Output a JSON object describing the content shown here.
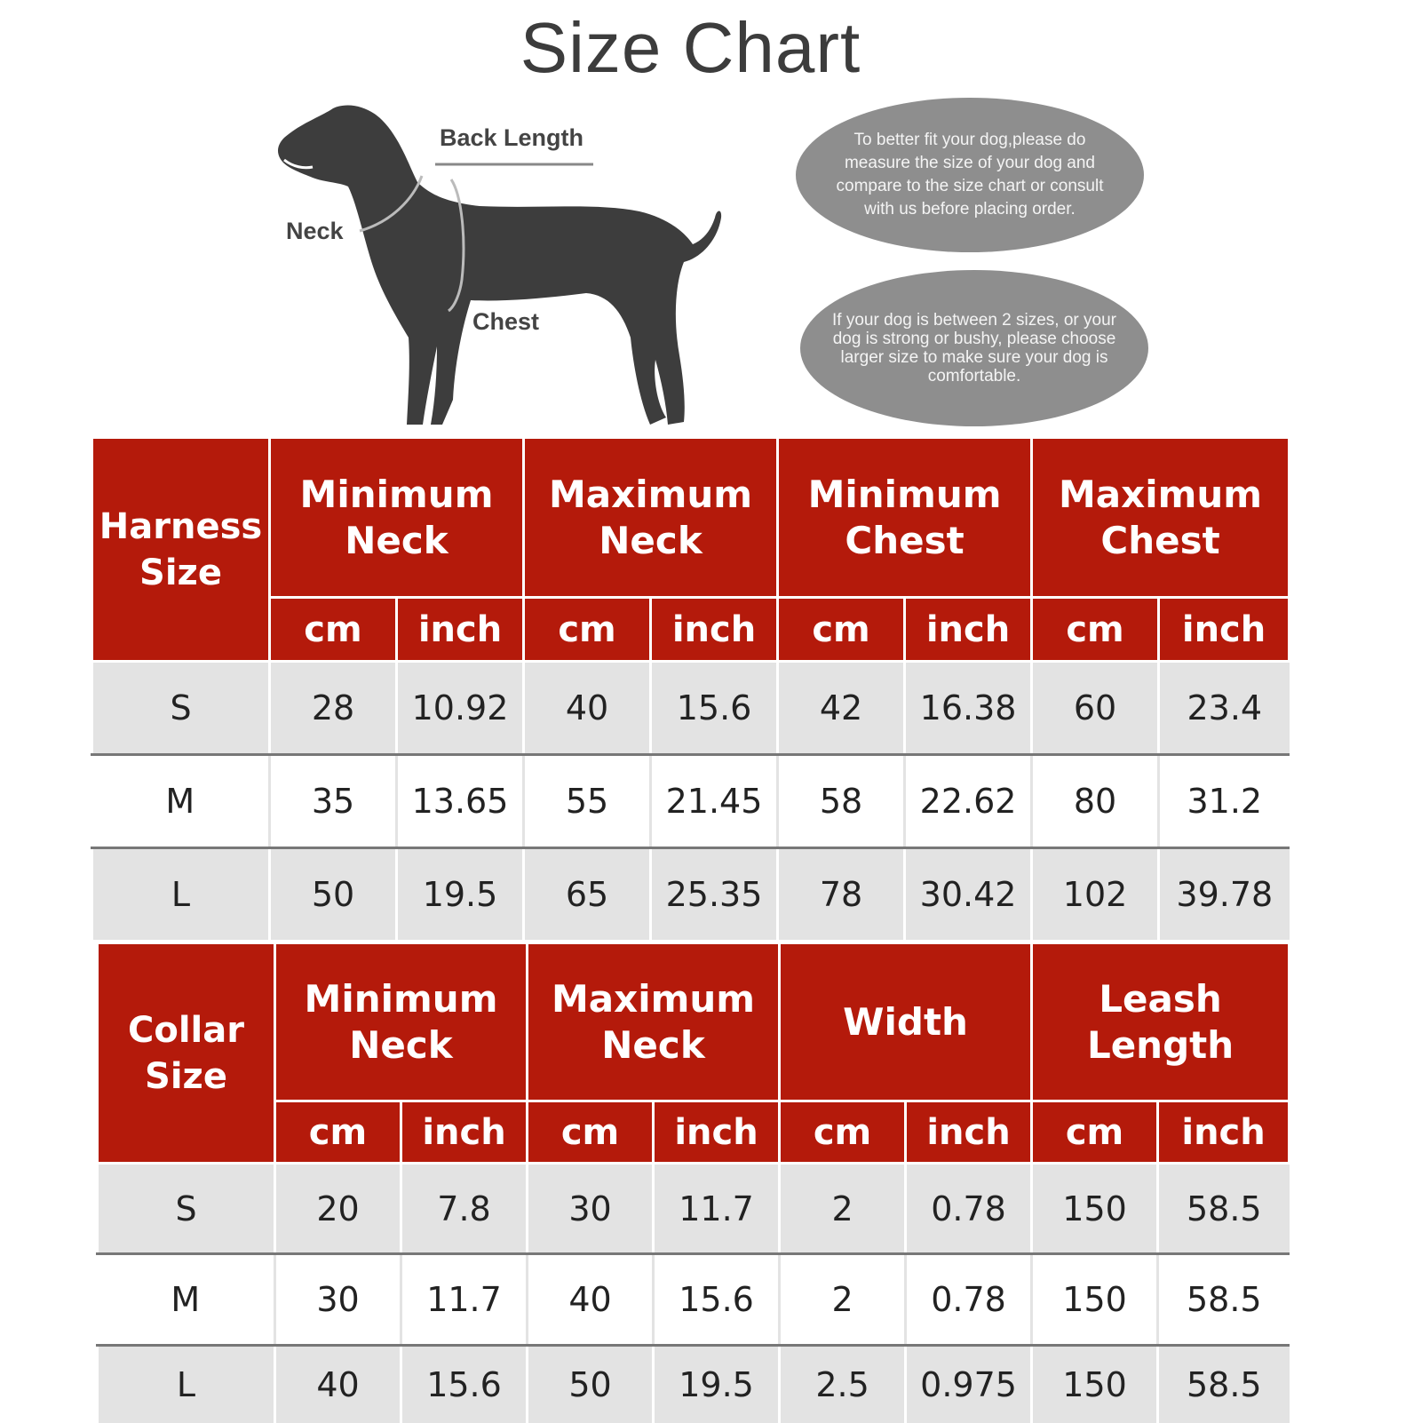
{
  "title": "Size Chart",
  "diagram": {
    "labels": {
      "back_length": "Back Length",
      "neck": "Neck",
      "chest": "Chest"
    }
  },
  "notes": [
    "To better fit your dog,please do measure the size of your dog and compare to the size chart or consult with  us before placing order.",
    "If your dog is between 2 sizes, or your dog is strong or bushy, please choose larger size to make sure your dog is comfortable."
  ],
  "harness": {
    "corner_label": "Harness Size",
    "groups": [
      "Minimum Neck",
      "Maximum Neck",
      "Minimum Chest",
      "Maximum Chest"
    ],
    "units": [
      "cm",
      "inch",
      "cm",
      "inch",
      "cm",
      "inch",
      "cm",
      "inch"
    ],
    "rows": [
      [
        "S",
        "28",
        "10.92",
        "40",
        "15.6",
        "42",
        "16.38",
        "60",
        "23.4"
      ],
      [
        "M",
        "35",
        "13.65",
        "55",
        "21.45",
        "58",
        "22.62",
        "80",
        "31.2"
      ],
      [
        "L",
        "50",
        "19.5",
        "65",
        "25.35",
        "78",
        "30.42",
        "102",
        "39.78"
      ]
    ]
  },
  "collar": {
    "corner_label": "Collar Size",
    "groups": [
      "Minimum Neck",
      "Maximum Neck",
      "Width",
      "Leash Length"
    ],
    "units": [
      "cm",
      "inch",
      "cm",
      "inch",
      "cm",
      "inch",
      "cm",
      "inch"
    ],
    "rows": [
      [
        "S",
        "20",
        "7.8",
        "30",
        "11.7",
        "2",
        "0.78",
        "150",
        "58.5"
      ],
      [
        "M",
        "30",
        "11.7",
        "40",
        "15.6",
        "2",
        "0.78",
        "150",
        "58.5"
      ],
      [
        "L",
        "40",
        "15.6",
        "50",
        "19.5",
        "2.5",
        "0.975",
        "150",
        "58.5"
      ]
    ]
  },
  "colors": {
    "header_red": "#b41a0b",
    "row_shade": "#e3e3e3",
    "bubble_gray": "#8e8e8e",
    "dog": "#3d3d3d"
  }
}
